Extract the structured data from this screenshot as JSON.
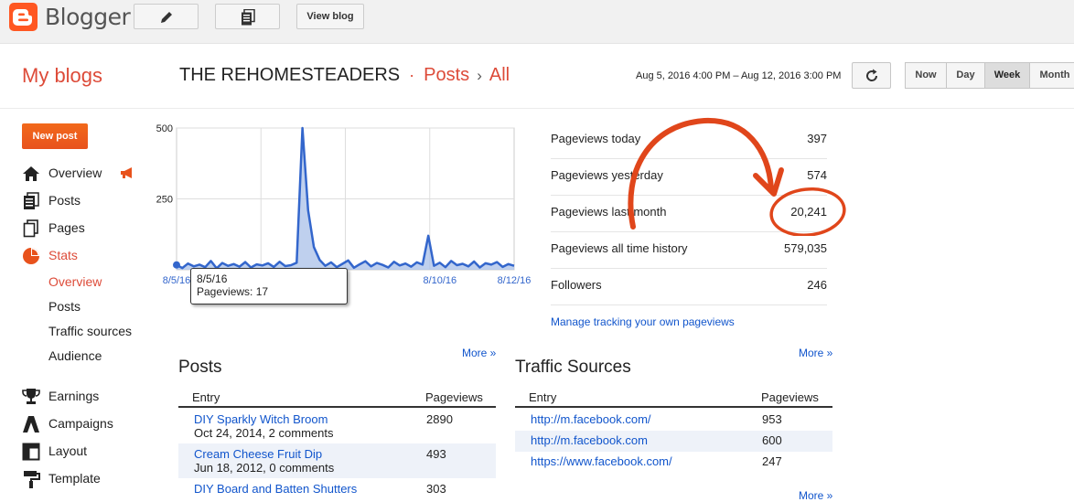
{
  "app": {
    "name": "Blogger"
  },
  "toolbar": {
    "view_blog": "View blog"
  },
  "header": {
    "my_blogs": "My blogs",
    "blog_name": "THE REHOMESTEADERS",
    "crumb_posts": "Posts",
    "crumb_all": "All",
    "separator_dot": "·",
    "separator_chevron": "›",
    "date_range": "Aug 5, 2016 4:00 PM – Aug 12, 2016 3:00 PM",
    "ranges": [
      "Now",
      "Day",
      "Week",
      "Month"
    ],
    "active_range": "Week"
  },
  "sidebar": {
    "new_post": "New post",
    "items": [
      {
        "label": "Overview",
        "icon": "home-icon"
      },
      {
        "label": "Posts",
        "icon": "posts-icon"
      },
      {
        "label": "Pages",
        "icon": "pages-icon"
      },
      {
        "label": "Stats",
        "icon": "stats-icon"
      },
      {
        "label": "Earnings",
        "icon": "trophy-icon"
      },
      {
        "label": "Campaigns",
        "icon": "campaigns-icon"
      },
      {
        "label": "Layout",
        "icon": "layout-icon"
      },
      {
        "label": "Template",
        "icon": "template-icon"
      }
    ],
    "stats_sub": [
      "Overview",
      "Posts",
      "Traffic sources",
      "Audience"
    ]
  },
  "chart_data": {
    "type": "area",
    "color": "#3366cc",
    "ylim": [
      0,
      500
    ],
    "yticks": [
      "500",
      "250"
    ],
    "xticks": [
      "8/5/16",
      "8/10/16",
      "8/12/16"
    ],
    "series": [
      {
        "values": [
          17,
          6,
          22,
          12,
          18,
          9,
          31,
          5,
          24,
          14,
          20,
          11,
          27,
          8,
          19,
          15,
          23,
          10,
          28,
          13,
          16,
          25,
          500,
          210,
          80,
          35,
          14,
          26,
          9,
          21,
          33,
          7,
          19,
          30,
          12,
          24,
          17,
          8,
          28,
          15,
          22,
          11,
          26,
          18,
          120,
          14,
          25,
          9,
          31,
          16,
          21,
          12,
          29,
          8,
          23,
          18,
          27,
          10,
          20,
          14
        ]
      }
    ],
    "tooltip": {
      "date": "8/5/16",
      "label": "Pageviews: 17"
    }
  },
  "stats": {
    "rows": [
      {
        "label": "Pageviews today",
        "value": "397"
      },
      {
        "label": "Pageviews yesterday",
        "value": "574"
      },
      {
        "label": "Pageviews last month",
        "value": "20,241"
      },
      {
        "label": "Pageviews all time history",
        "value": "579,035"
      },
      {
        "label": "Followers",
        "value": "246"
      }
    ],
    "manage_link": "Manage tracking your own pageviews",
    "annotation_color": "#e0461b"
  },
  "posts": {
    "title": "Posts",
    "more": "More »",
    "col_entry": "Entry",
    "col_pageviews": "Pageviews",
    "rows": [
      {
        "title": "DIY Sparkly Witch Broom",
        "meta": "Oct 24, 2014, 2 comments",
        "views": "2890"
      },
      {
        "title": "Cream Cheese Fruit Dip",
        "meta": "Jun 18, 2012, 0 comments",
        "views": "493"
      },
      {
        "title": "DIY Board and Batten Shutters",
        "meta": "",
        "views": "303"
      }
    ]
  },
  "traffic": {
    "title": "Traffic Sources",
    "more": "More »",
    "more_bottom": "More »",
    "col_entry": "Entry",
    "col_pageviews": "Pageviews",
    "rows": [
      {
        "url": "http://m.facebook.com/",
        "views": "953"
      },
      {
        "url": "http://m.facebook.com",
        "views": "600"
      },
      {
        "url": "https://www.facebook.com/",
        "views": "247"
      }
    ]
  }
}
